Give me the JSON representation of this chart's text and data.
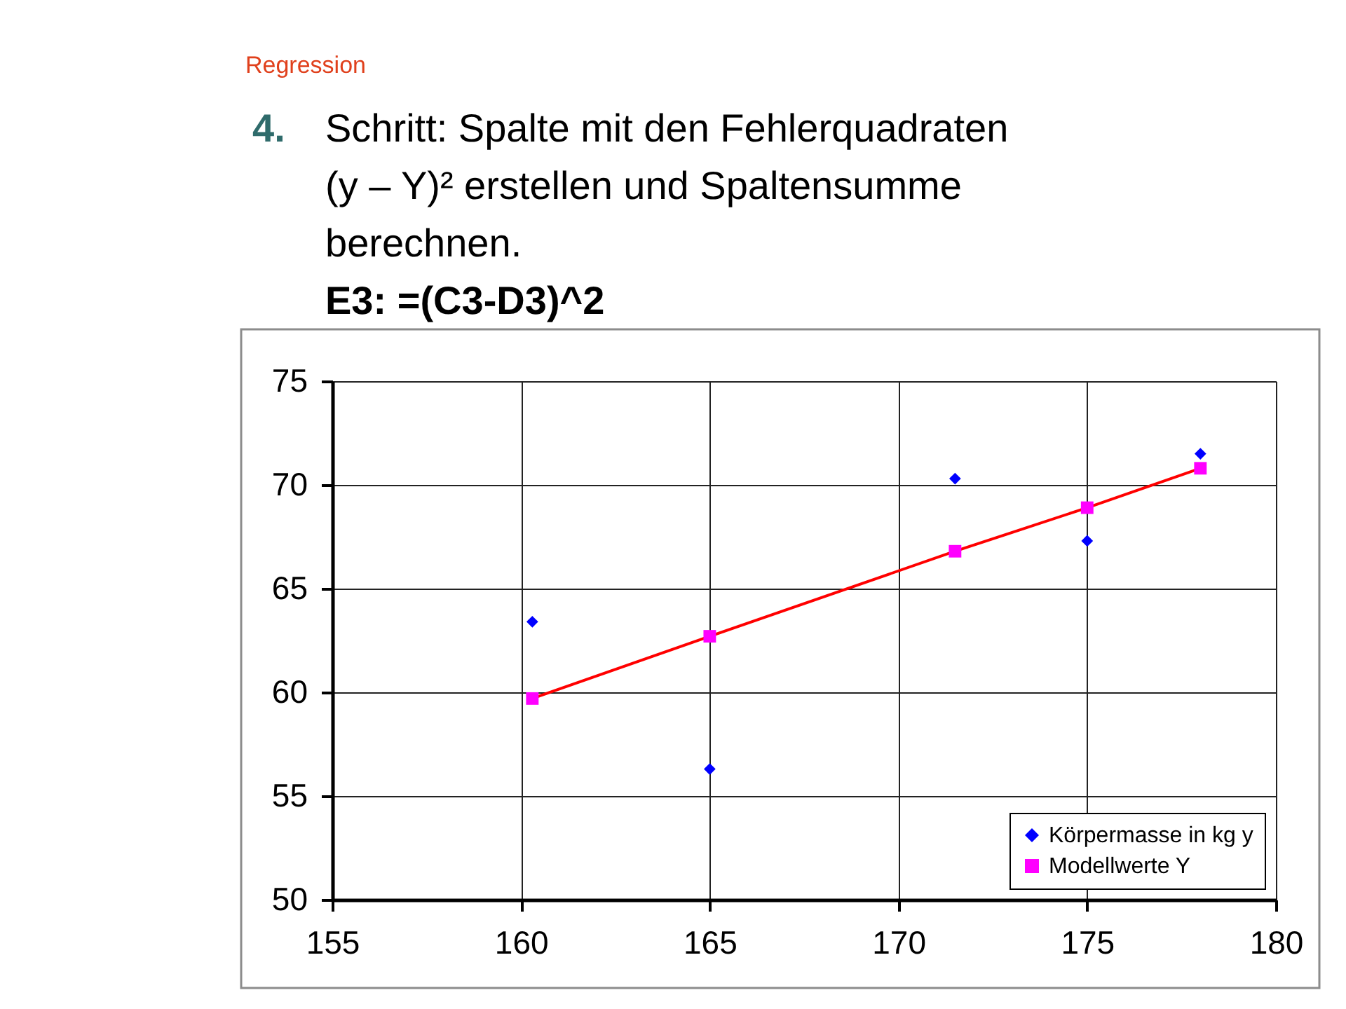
{
  "chart_data": {
    "type": "scatter",
    "title": "Regression",
    "subtitle": "4. Schritt: Spalte mit den Fehlerquadraten (y – Y)² erstellen und Spaltensumme berechnen.",
    "annotations": [
      "E3: =(C3-D3)^2"
    ],
    "xlim": [
      155,
      180
    ],
    "xticks": [
      155,
      160,
      165,
      170,
      175,
      180
    ],
    "ylim": [
      50,
      75
    ],
    "yticks": [
      50,
      55,
      60,
      65,
      70,
      75
    ],
    "grid": true,
    "legend": "bottom right",
    "series": [
      {
        "name": "Körpermasse in kg y",
        "type": "scatter",
        "marker": "diamond",
        "color": "#0000ff",
        "x": [
          160.3,
          165.0,
          171.5,
          175.0,
          178.0
        ],
        "values": [
          63.4,
          56.3,
          70.3,
          67.3,
          71.5
        ]
      },
      {
        "type": "line",
        "marker": "none",
        "line_style": "solid",
        "color": "#ff0000",
        "x": [
          160.3,
          165.0,
          171.5,
          175.0,
          178.0
        ],
        "values": [
          59.7,
          62.7,
          66.8,
          68.9,
          70.8
        ]
      },
      {
        "name": "Modellwerte Y",
        "marker": "square",
        "color": "#ff00ff",
        "x": [
          160.3,
          165.0,
          171.5,
          175.0,
          178.0
        ],
        "values": [
          59.7,
          62.7,
          66.8,
          68.9,
          70.8
        ]
      }
    ]
  }
}
